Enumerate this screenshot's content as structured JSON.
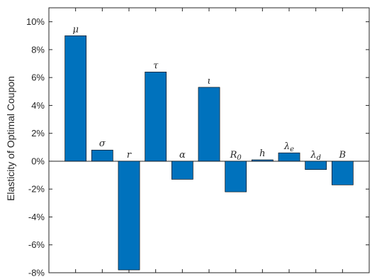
{
  "chart_data": {
    "type": "bar",
    "ylabel": "Elasticity of Optimal Coupon",
    "ylim": [
      -8,
      11
    ],
    "yticks": [
      "10%",
      "8%",
      "6%",
      "4%",
      "2%",
      "0%",
      "-2%",
      "-4%",
      "-6%",
      "-8%"
    ],
    "ytick_values": [
      10,
      8,
      6,
      4,
      2,
      0,
      -2,
      -4,
      -6,
      -8
    ],
    "categories": [
      "μ",
      "σ",
      "r",
      "τ",
      "α",
      "ι",
      "R₀",
      "h",
      "λₑ",
      "λ_d",
      "B"
    ],
    "category_labels": [
      {
        "base": "μ",
        "sub": ""
      },
      {
        "base": "σ",
        "sub": ""
      },
      {
        "base": "r",
        "sub": ""
      },
      {
        "base": "τ",
        "sub": ""
      },
      {
        "base": "α",
        "sub": ""
      },
      {
        "base": "ι",
        "sub": ""
      },
      {
        "base": "R",
        "sub": "0"
      },
      {
        "base": "h",
        "sub": ""
      },
      {
        "base": "λ",
        "sub": "e"
      },
      {
        "base": "λ",
        "sub": "d"
      },
      {
        "base": "B",
        "sub": ""
      }
    ],
    "values": [
      9.0,
      0.8,
      -7.8,
      6.4,
      -1.3,
      5.3,
      -2.2,
      0.1,
      0.6,
      -0.6,
      -1.7
    ],
    "grid": false,
    "bar_color": "#0072BD",
    "axis_color": "#262626"
  }
}
